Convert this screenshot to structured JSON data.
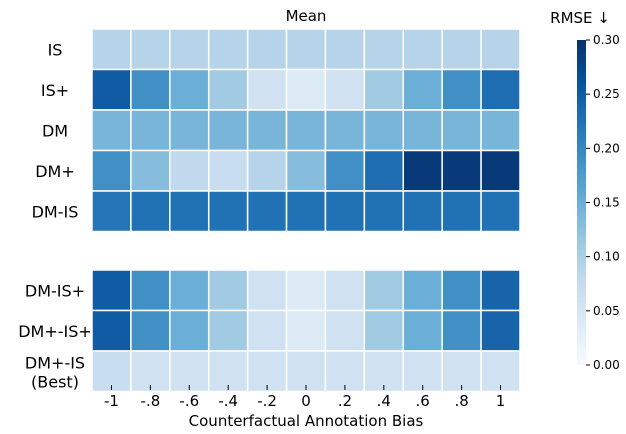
{
  "chart_data": {
    "type": "heatmap",
    "title": "Mean",
    "xlabel": "Counterfactual Annotation Bias",
    "colorbar_label": "RMSE ↓",
    "colorbar_ticks": [
      "0.00",
      "0.05",
      "0.10",
      "0.15",
      "0.20",
      "0.25",
      "0.30"
    ],
    "color_range": [
      0,
      0.3
    ],
    "colormap": "Blues",
    "x_ticks": [
      "-1",
      "-.8",
      "-.6",
      "-.4",
      "-.2",
      "0",
      ".2",
      ".4",
      ".6",
      ".8",
      "1"
    ],
    "groups": [
      {
        "rows": [
          {
            "label": "IS",
            "values": [
              0.09,
              0.09,
              0.09,
              0.09,
              0.09,
              0.09,
              0.09,
              0.09,
              0.09,
              0.09,
              0.09
            ]
          },
          {
            "label": "IS+",
            "values": [
              0.25,
              0.19,
              0.15,
              0.11,
              0.06,
              0.04,
              0.06,
              0.11,
              0.15,
              0.19,
              0.23
            ]
          },
          {
            "label": "DM",
            "values": [
              0.14,
              0.14,
              0.14,
              0.14,
              0.14,
              0.14,
              0.14,
              0.14,
              0.14,
              0.14,
              0.14
            ]
          },
          {
            "label": "DM+",
            "values": [
              0.19,
              0.13,
              0.08,
              0.07,
              0.09,
              0.13,
              0.19,
              0.23,
              0.29,
              0.29,
              0.29
            ]
          },
          {
            "label": "DM-IS",
            "values": [
              0.22,
              0.225,
              0.225,
              0.225,
              0.225,
              0.225,
              0.225,
              0.225,
              0.225,
              0.225,
              0.225
            ]
          }
        ]
      },
      {
        "rows": [
          {
            "label": "DM-IS+",
            "values": [
              0.25,
              0.19,
              0.15,
              0.11,
              0.06,
              0.04,
              0.06,
              0.11,
              0.15,
              0.19,
              0.24
            ]
          },
          {
            "label": "DM+-IS+",
            "values": [
              0.25,
              0.19,
              0.15,
              0.11,
              0.06,
              0.04,
              0.06,
              0.11,
              0.15,
              0.19,
              0.24
            ]
          },
          {
            "label": "DM+-IS\n(Best)",
            "values": [
              0.07,
              0.06,
              0.06,
              0.06,
              0.06,
              0.06,
              0.06,
              0.06,
              0.06,
              0.06,
              0.06
            ]
          }
        ]
      }
    ]
  }
}
